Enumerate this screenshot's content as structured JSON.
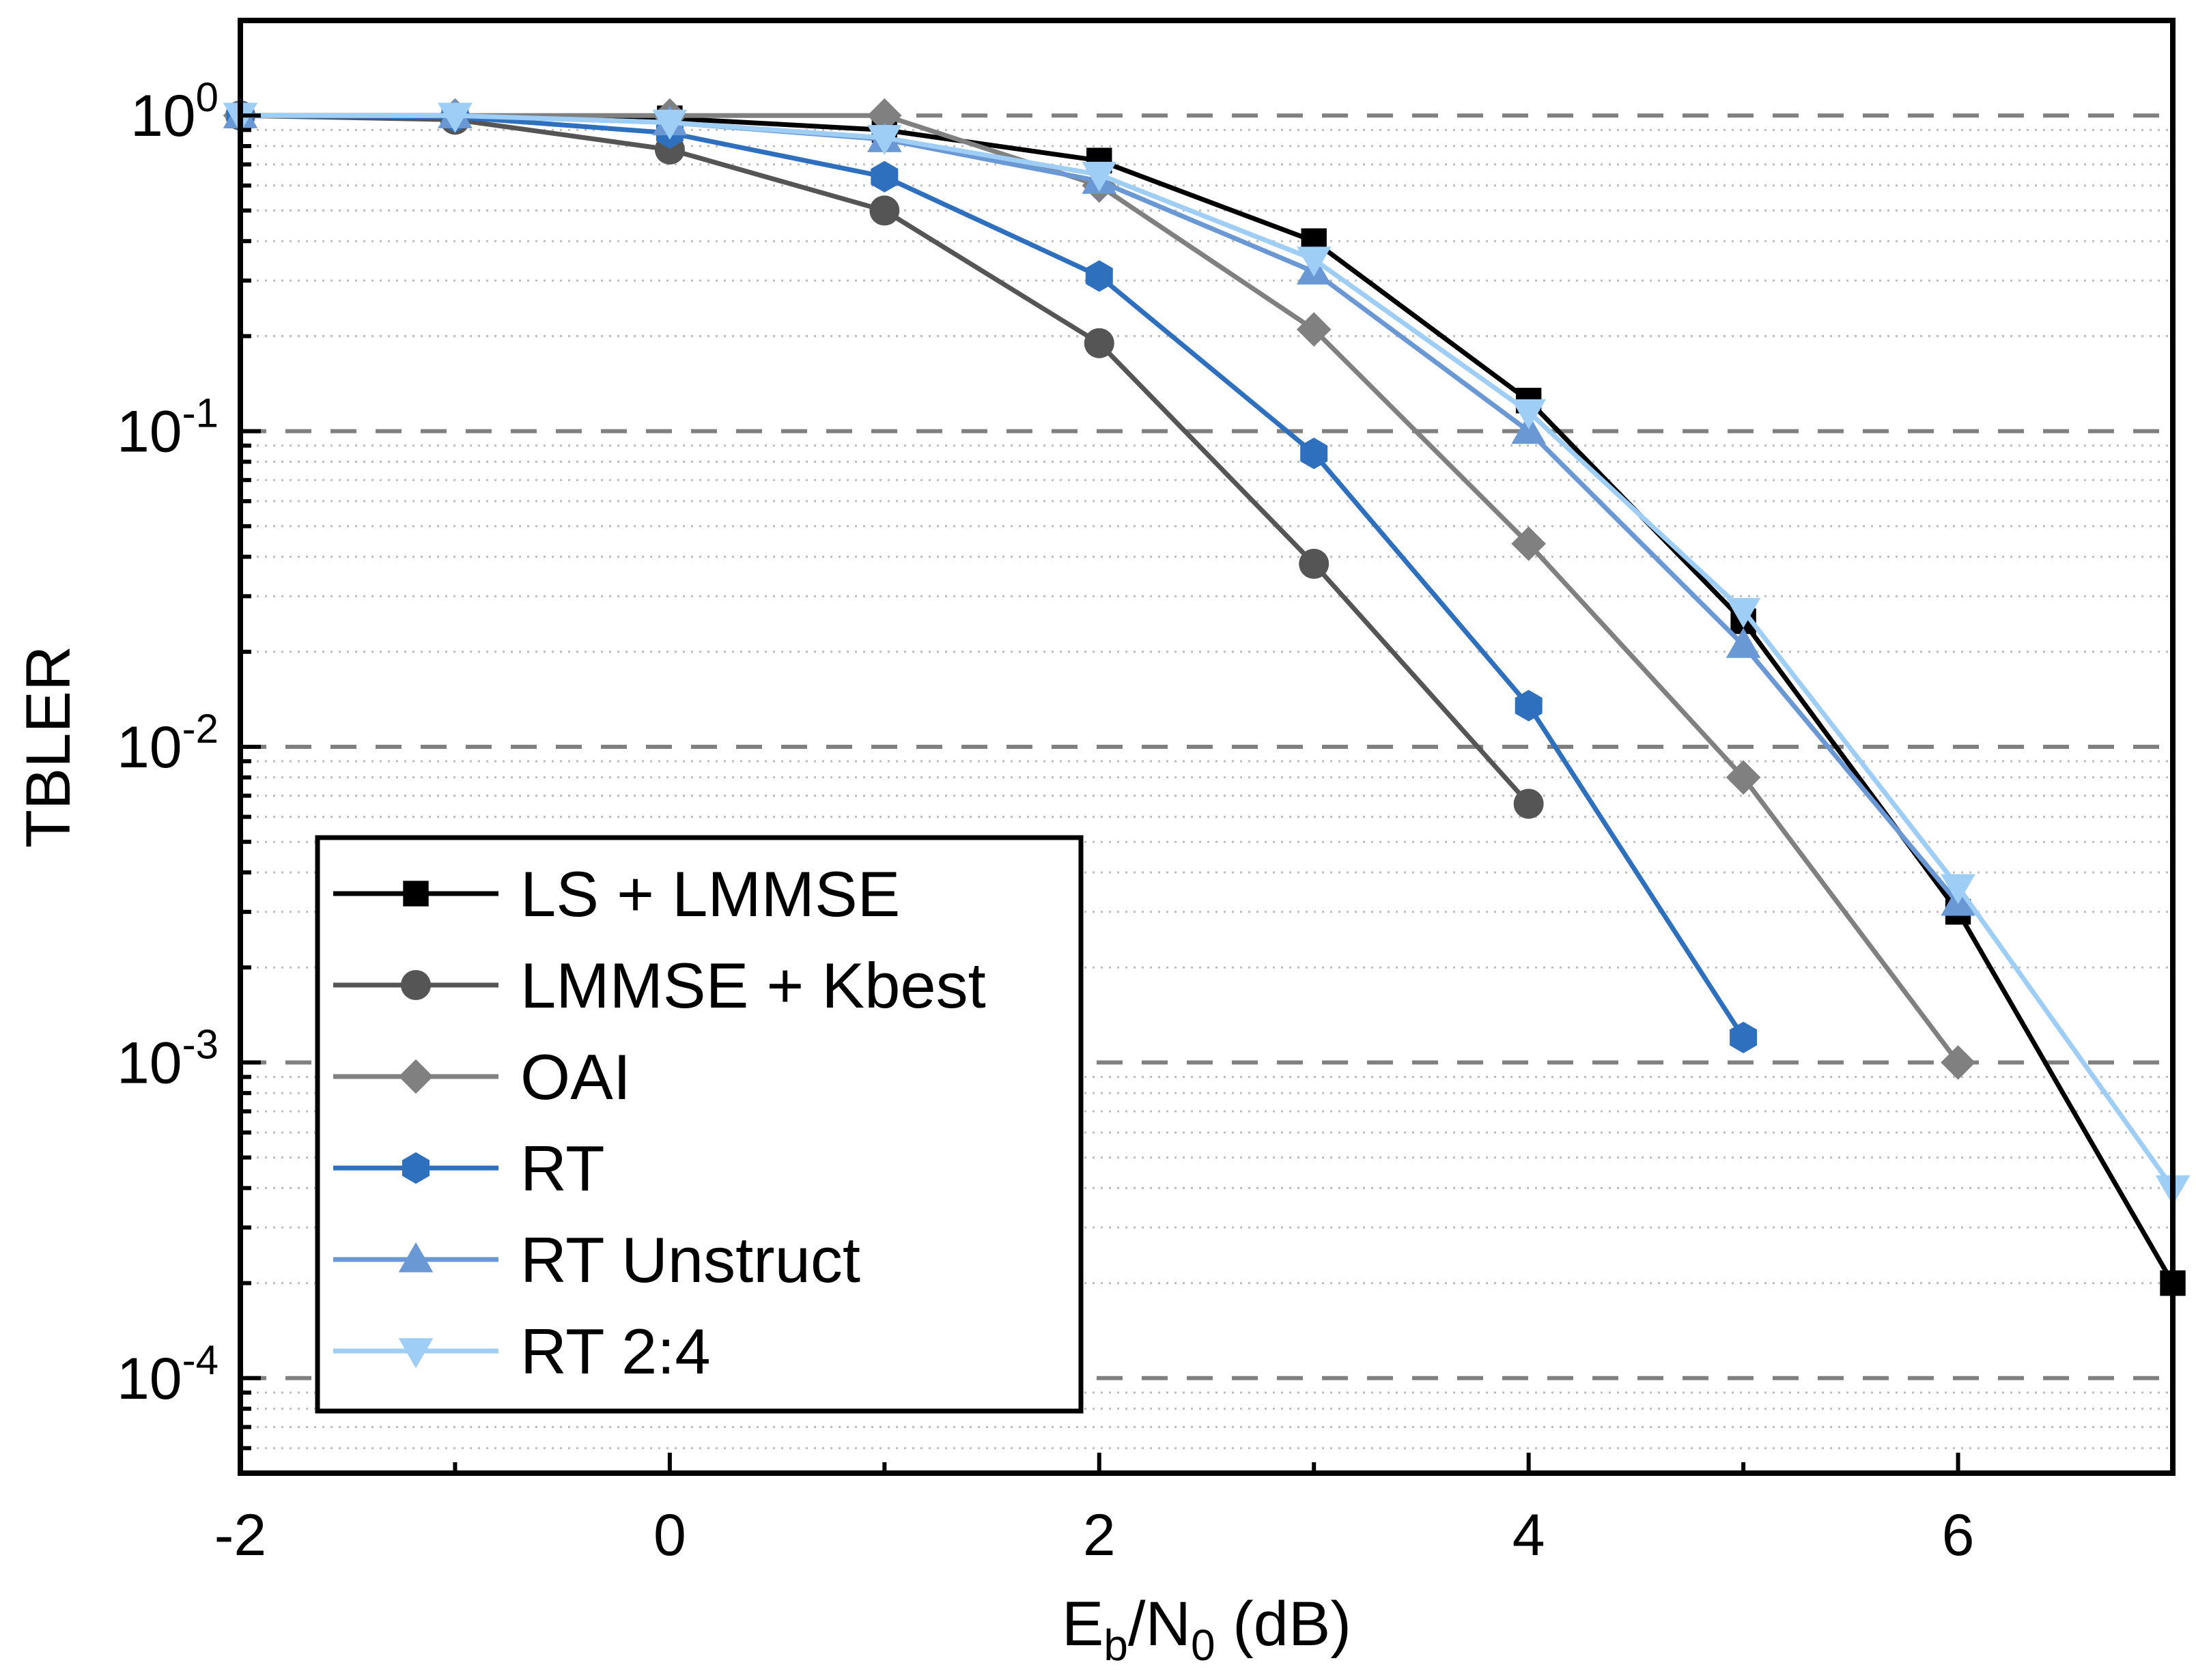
{
  "chart_data": {
    "type": "line",
    "xlabel": {
      "base": "E",
      "sub1": "b",
      "mid": "/N",
      "sub2": "0",
      "tail": " (dB)"
    },
    "ylabel": "TBLER",
    "xlim": [
      -2,
      7
    ],
    "ylim": [
      5e-05,
      2
    ],
    "yscale": "log",
    "xticks": [
      -2,
      0,
      2,
      4,
      6
    ],
    "yticks": [
      {
        "value": 1,
        "base": "10",
        "exp": "0"
      },
      {
        "value": 0.1,
        "base": "10",
        "exp": "-1"
      },
      {
        "value": 0.01,
        "base": "10",
        "exp": "-2"
      },
      {
        "value": 0.001,
        "base": "10",
        "exp": "-3"
      },
      {
        "value": 0.0001,
        "base": "10",
        "exp": "-4"
      }
    ],
    "grid": {
      "major_y": "dashed",
      "minor_y": "dotted"
    },
    "legend": "bottom-left",
    "series": [
      {
        "name": "LS + LMMSE",
        "color": "#000000",
        "marker": "square",
        "x": [
          -2,
          -1,
          0,
          1,
          2,
          3,
          4,
          5,
          6,
          7
        ],
        "y": [
          1.0,
          1.0,
          0.98,
          0.9,
          0.72,
          0.4,
          0.125,
          0.025,
          0.003,
          0.0002
        ]
      },
      {
        "name": "LMMSE + Kbest",
        "color": "#555555",
        "marker": "circle",
        "x": [
          -2,
          -1,
          0,
          1,
          2,
          3,
          4
        ],
        "y": [
          1.0,
          0.97,
          0.78,
          0.5,
          0.19,
          0.038,
          0.0066
        ]
      },
      {
        "name": "OAI",
        "color": "#808080",
        "marker": "diamond",
        "x": [
          -2,
          -1,
          0,
          1,
          2,
          3,
          4,
          5,
          6
        ],
        "y": [
          1.0,
          1.0,
          1.0,
          1.0,
          0.6,
          0.21,
          0.044,
          0.008,
          0.001
        ]
      },
      {
        "name": "RT",
        "color": "#2e6fbe",
        "marker": "hexagon",
        "x": [
          -2,
          -1,
          0,
          1,
          2,
          3,
          4,
          5
        ],
        "y": [
          1.0,
          0.99,
          0.88,
          0.64,
          0.31,
          0.085,
          0.0135,
          0.0012
        ]
      },
      {
        "name": "RT Unstruct",
        "color": "#6a98d4",
        "marker": "triangle-up",
        "x": [
          -2,
          -1,
          0,
          1,
          2,
          3,
          4,
          5,
          6
        ],
        "y": [
          1.0,
          1.0,
          0.95,
          0.84,
          0.62,
          0.32,
          0.1,
          0.021,
          0.0032
        ]
      },
      {
        "name": "RT 2:4",
        "color": "#9ecdf5",
        "marker": "triangle-down",
        "x": [
          -2,
          -1,
          0,
          1,
          2,
          3,
          4,
          5,
          6,
          7
        ],
        "y": [
          1.0,
          1.0,
          0.95,
          0.85,
          0.65,
          0.35,
          0.115,
          0.027,
          0.0036,
          0.0004
        ]
      }
    ]
  }
}
